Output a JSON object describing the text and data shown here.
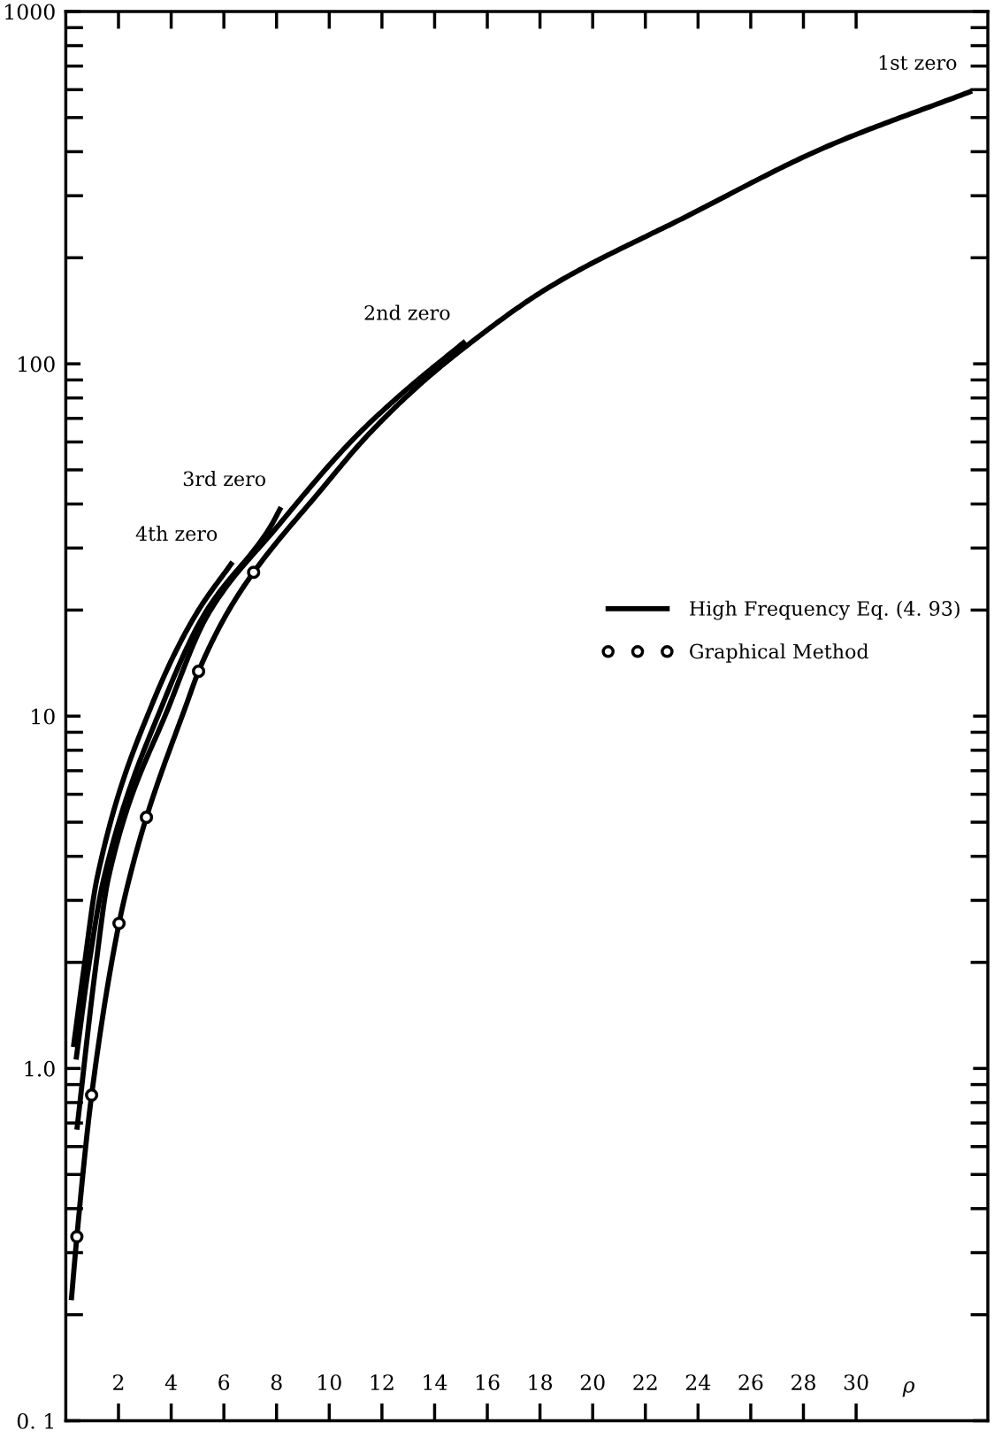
{
  "chart_data": {
    "type": "line",
    "xlabel": "ρ",
    "log": "y",
    "grid": false,
    "legend": "right",
    "marker": "none",
    "line_style": "solid",
    "xlim": [
      0,
      35
    ],
    "ylim": [
      0.1,
      1000
    ],
    "xticks": [
      2,
      4,
      6,
      8,
      10,
      12,
      14,
      16,
      18,
      20,
      22,
      24,
      26,
      28,
      30
    ],
    "yticks": [
      {
        "value": 0.1,
        "label": "0. 1"
      },
      {
        "value": 1,
        "label": "1.0"
      },
      10,
      100,
      1000
    ],
    "annotations": [
      "High Frequency Eq. (4. 93)"
    ],
    "series": [
      {
        "name": "1st zero",
        "color": "#000000",
        "x": [
          0.21,
          0.42,
          0.98,
          2.02,
          2.42,
          3.06,
          4.61,
          5.04,
          6.09,
          7.13,
          9.66,
          11.4,
          13.26,
          15.05,
          18.35,
          23.56,
          28.77,
          34.4
        ],
        "values": [
          0.22,
          0.333,
          0.84,
          2.58,
          3.48,
          5.16,
          10.96,
          13.4,
          19.4,
          25.6,
          43.6,
          62,
          85,
          110,
          165,
          262,
          410,
          595
        ]
      },
      {
        "name": "2nd zero",
        "color": "#000000",
        "x": [
          0.42,
          1.13,
          1.62,
          3.98,
          5.39,
          8.03,
          10.92,
          12.7,
          15.17
        ],
        "values": [
          0.67,
          1.93,
          3.48,
          10.96,
          19.4,
          34.5,
          61.2,
          81.6,
          116
        ]
      },
      {
        "name": "3rd zero",
        "color": "#000000",
        "x": [
          0.39,
          0.86,
          1.45,
          3.71,
          5.25,
          7.77,
          8.17
        ],
        "values": [
          1.06,
          1.93,
          3.48,
          10.96,
          19.4,
          34.5,
          39.2
        ]
      },
      {
        "name": "4th zero",
        "color": "#000000",
        "x": [
          0.29,
          0.69,
          1.19,
          3.31,
          4.93,
          6.33
        ],
        "values": [
          1.15,
          1.93,
          3.48,
          10.96,
          19.4,
          27.4
        ]
      },
      {
        "name": "Graphical Method",
        "type": "scatter",
        "marker": "circle",
        "color": "#000000",
        "x": [
          0.42,
          0.98,
          2.02,
          3.06,
          5.04,
          7.13
        ],
        "values": [
          0.333,
          0.84,
          2.58,
          5.16,
          13.4,
          25.6
        ]
      }
    ]
  }
}
